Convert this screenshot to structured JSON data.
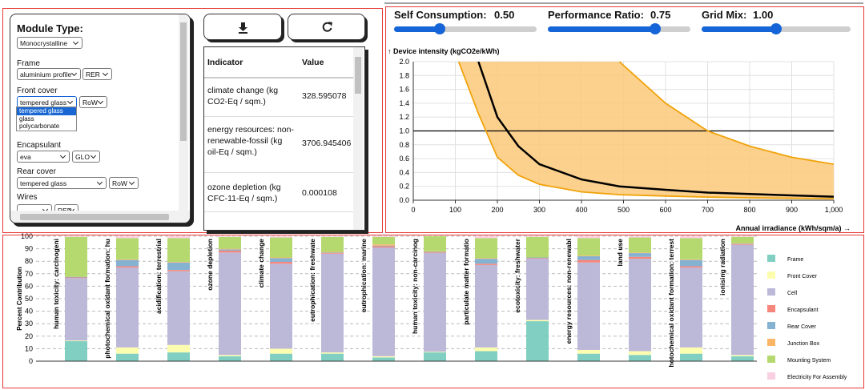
{
  "form": {
    "title": "Module Type:",
    "module_type": "Monocrystalline",
    "fields": [
      {
        "label": "Frame",
        "material": "aluminium profile",
        "region": "RER"
      },
      {
        "label": "Front cover",
        "material": "tempered glass",
        "region": "RoW"
      },
      {
        "label": "Encapsulant",
        "material": "eva",
        "region": "GLO"
      },
      {
        "label": "Rear cover",
        "material": "tempered glass",
        "region": "RoW"
      },
      {
        "label": "Wires",
        "region": "RER"
      }
    ],
    "dropdown_options": [
      "tempered glass",
      "glass",
      "polycarbonate"
    ]
  },
  "table": {
    "header": [
      "Indicator",
      "Value"
    ],
    "rows": [
      [
        "climate change (kg CO2-Eq / sqm.)",
        328.595078
      ],
      [
        "energy resources: non-renewable-fossil (kg oil-Eq / sqm.)",
        3706.945406
      ],
      [
        "ozone depletion (kg CFC-11-Eq / sqm.)",
        0.000108
      ]
    ]
  },
  "sliders": [
    {
      "label": "Self Consumption:",
      "value": "0.50"
    },
    {
      "label": "Performance Ratio:",
      "value": "0.75"
    },
    {
      "label": "Grid Mix:",
      "value": "1.00"
    }
  ],
  "chart_data": [
    {
      "type": "line",
      "y_label": "↑ Device intensity (kgCO2e/kWh)",
      "x_label": "Annual irradiance (kWh/sqm/a) →",
      "x": [
        108,
        155,
        200,
        250,
        300,
        400,
        490,
        600,
        700,
        800,
        900,
        1000
      ],
      "series": [
        {
          "color": "#f0a30a",
          "values": [
            null,
            null,
            null,
            null,
            null,
            null,
            2.0,
            1.4,
            1.0,
            0.78,
            0.62,
            0.52
          ]
        },
        {
          "color": "#f0a30a",
          "values": [
            2.0,
            1.25,
            0.62,
            0.36,
            0.23,
            0.12,
            0.08,
            0.06,
            0.045,
            0.035,
            0.028,
            0.022
          ]
        },
        {
          "color": "#000000",
          "values": [
            null,
            2.0,
            1.2,
            0.78,
            0.52,
            0.3,
            0.2,
            0.15,
            0.11,
            0.09,
            0.07,
            0.05
          ]
        }
      ],
      "band_fill": "#fbc97a",
      "reference_line": 1,
      "xlim": [
        0,
        1000
      ],
      "xticks": [
        0,
        100,
        200,
        300,
        400,
        500,
        600,
        700,
        800,
        900,
        {
          "value": 1000,
          "label": "1,000"
        }
      ],
      "ylim": [
        0,
        2
      ],
      "yticks": [
        {
          "value": 0,
          "label": "0.0"
        },
        0.2,
        0.4,
        0.6,
        0.8,
        {
          "value": 1,
          "label": "1.0"
        },
        1.2,
        1.4,
        1.6,
        1.8,
        {
          "value": 2,
          "label": "2.0"
        }
      ],
      "grid": true
    },
    {
      "type": "stacked_bar",
      "y_label": "Percent Contribution",
      "categories": [
        "human toxicity: carcinogeni",
        "photochemical oxidant formation: hu",
        "acidification: terrestrial",
        "ozone depletion",
        "climate change",
        "eutrophication: freshwate",
        "eutrophication: marine",
        "human toxicity: non-carcinog",
        "particulate matter formatio",
        "ecotoxicity: freshwater",
        "energy resources: non-renewabl",
        "land use",
        "hotochemical oxidant formation: terrest",
        "ionising radiation"
      ],
      "series": [
        {
          "name": "Frame",
          "color": "#80cfc2",
          "values": [
            16,
            6,
            7,
            4,
            6,
            6,
            3,
            7,
            8,
            32,
            6,
            5,
            6,
            4
          ]
        },
        {
          "name": "Front Cover",
          "color": "#fdfdb0",
          "values": [
            0.5,
            5,
            6,
            1,
            4,
            1,
            1,
            0.5,
            3,
            1,
            3,
            3,
            5,
            1
          ]
        },
        {
          "name": "Cell",
          "color": "#bcb8d8",
          "values": [
            50,
            64,
            59,
            82,
            68,
            79,
            87,
            79,
            66,
            49,
            70,
            74,
            64,
            88
          ]
        },
        {
          "name": "Encapsulant",
          "color": "#f7867a",
          "values": [
            0.5,
            1,
            1,
            1.5,
            1.5,
            0.5,
            1,
            0.5,
            1,
            0.5,
            2,
            1.5,
            1,
            0.5
          ]
        },
        {
          "name": "Rear Cover",
          "color": "#86b2d2",
          "values": [
            0.5,
            5,
            6,
            1,
            3,
            0.5,
            0.5,
            0.5,
            4,
            0.5,
            3,
            3,
            5,
            0.5
          ]
        },
        {
          "name": "Junction Box",
          "color": "#fbb566",
          "values": [
            0,
            0.5,
            0.5,
            0.5,
            0.5,
            0.5,
            1,
            0.5,
            0.5,
            0,
            0.5,
            0.5,
            0.5,
            0.5
          ]
        },
        {
          "name": "Mounting System",
          "color": "#b5d96e",
          "values": [
            32,
            17,
            19,
            9.5,
            16,
            12,
            6,
            12,
            16,
            16.5,
            14,
            12,
            17,
            5
          ]
        },
        {
          "name": "Electricity For Assembly",
          "color": "#f9cfe2",
          "values": [
            0.5,
            1.5,
            1.5,
            0.5,
            1,
            0.5,
            0.5,
            0,
            1.5,
            0.5,
            1.5,
            1,
            1.5,
            0.5
          ]
        }
      ],
      "ylim": [
        0,
        100
      ],
      "yticks": [
        0,
        10,
        20,
        30,
        40,
        50,
        60,
        70,
        80,
        90,
        100
      ],
      "grid": true,
      "legend": "right"
    }
  ]
}
